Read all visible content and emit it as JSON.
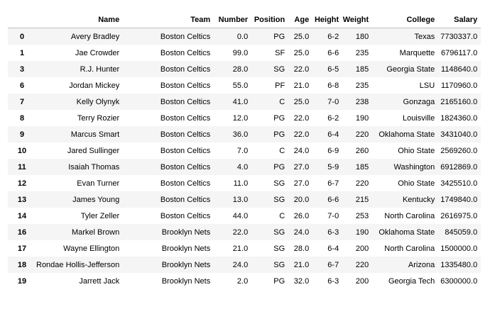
{
  "table": {
    "columns": [
      "",
      "Name",
      "Team",
      "Number",
      "Position",
      "Age",
      "Height",
      "Weight",
      "College",
      "Salary"
    ],
    "rows": [
      [
        "0",
        "Avery Bradley",
        "Boston Celtics",
        "0.0",
        "PG",
        "25.0",
        "6-2",
        "180",
        "Texas",
        "7730337.0"
      ],
      [
        "1",
        "Jae Crowder",
        "Boston Celtics",
        "99.0",
        "SF",
        "25.0",
        "6-6",
        "235",
        "Marquette",
        "6796117.0"
      ],
      [
        "3",
        "R.J. Hunter",
        "Boston Celtics",
        "28.0",
        "SG",
        "22.0",
        "6-5",
        "185",
        "Georgia State",
        "1148640.0"
      ],
      [
        "6",
        "Jordan Mickey",
        "Boston Celtics",
        "55.0",
        "PF",
        "21.0",
        "6-8",
        "235",
        "LSU",
        "1170960.0"
      ],
      [
        "7",
        "Kelly Olynyk",
        "Boston Celtics",
        "41.0",
        "C",
        "25.0",
        "7-0",
        "238",
        "Gonzaga",
        "2165160.0"
      ],
      [
        "8",
        "Terry Rozier",
        "Boston Celtics",
        "12.0",
        "PG",
        "22.0",
        "6-2",
        "190",
        "Louisville",
        "1824360.0"
      ],
      [
        "9",
        "Marcus Smart",
        "Boston Celtics",
        "36.0",
        "PG",
        "22.0",
        "6-4",
        "220",
        "Oklahoma State",
        "3431040.0"
      ],
      [
        "10",
        "Jared Sullinger",
        "Boston Celtics",
        "7.0",
        "C",
        "24.0",
        "6-9",
        "260",
        "Ohio State",
        "2569260.0"
      ],
      [
        "11",
        "Isaiah Thomas",
        "Boston Celtics",
        "4.0",
        "PG",
        "27.0",
        "5-9",
        "185",
        "Washington",
        "6912869.0"
      ],
      [
        "12",
        "Evan Turner",
        "Boston Celtics",
        "11.0",
        "SG",
        "27.0",
        "6-7",
        "220",
        "Ohio State",
        "3425510.0"
      ],
      [
        "13",
        "James Young",
        "Boston Celtics",
        "13.0",
        "SG",
        "20.0",
        "6-6",
        "215",
        "Kentucky",
        "1749840.0"
      ],
      [
        "14",
        "Tyler Zeller",
        "Boston Celtics",
        "44.0",
        "C",
        "26.0",
        "7-0",
        "253",
        "North Carolina",
        "2616975.0"
      ],
      [
        "16",
        "Markel Brown",
        "Brooklyn Nets",
        "22.0",
        "SG",
        "24.0",
        "6-3",
        "190",
        "Oklahoma State",
        "845059.0"
      ],
      [
        "17",
        "Wayne Ellington",
        "Brooklyn Nets",
        "21.0",
        "SG",
        "28.0",
        "6-4",
        "200",
        "North Carolina",
        "1500000.0"
      ],
      [
        "18",
        "Rondae Hollis-Jefferson",
        "Brooklyn Nets",
        "24.0",
        "SG",
        "21.0",
        "6-7",
        "220",
        "Arizona",
        "1335480.0"
      ],
      [
        "19",
        "Jarrett Jack",
        "Brooklyn Nets",
        "2.0",
        "PG",
        "32.0",
        "6-3",
        "200",
        "Georgia Tech",
        "6300000.0"
      ]
    ]
  }
}
